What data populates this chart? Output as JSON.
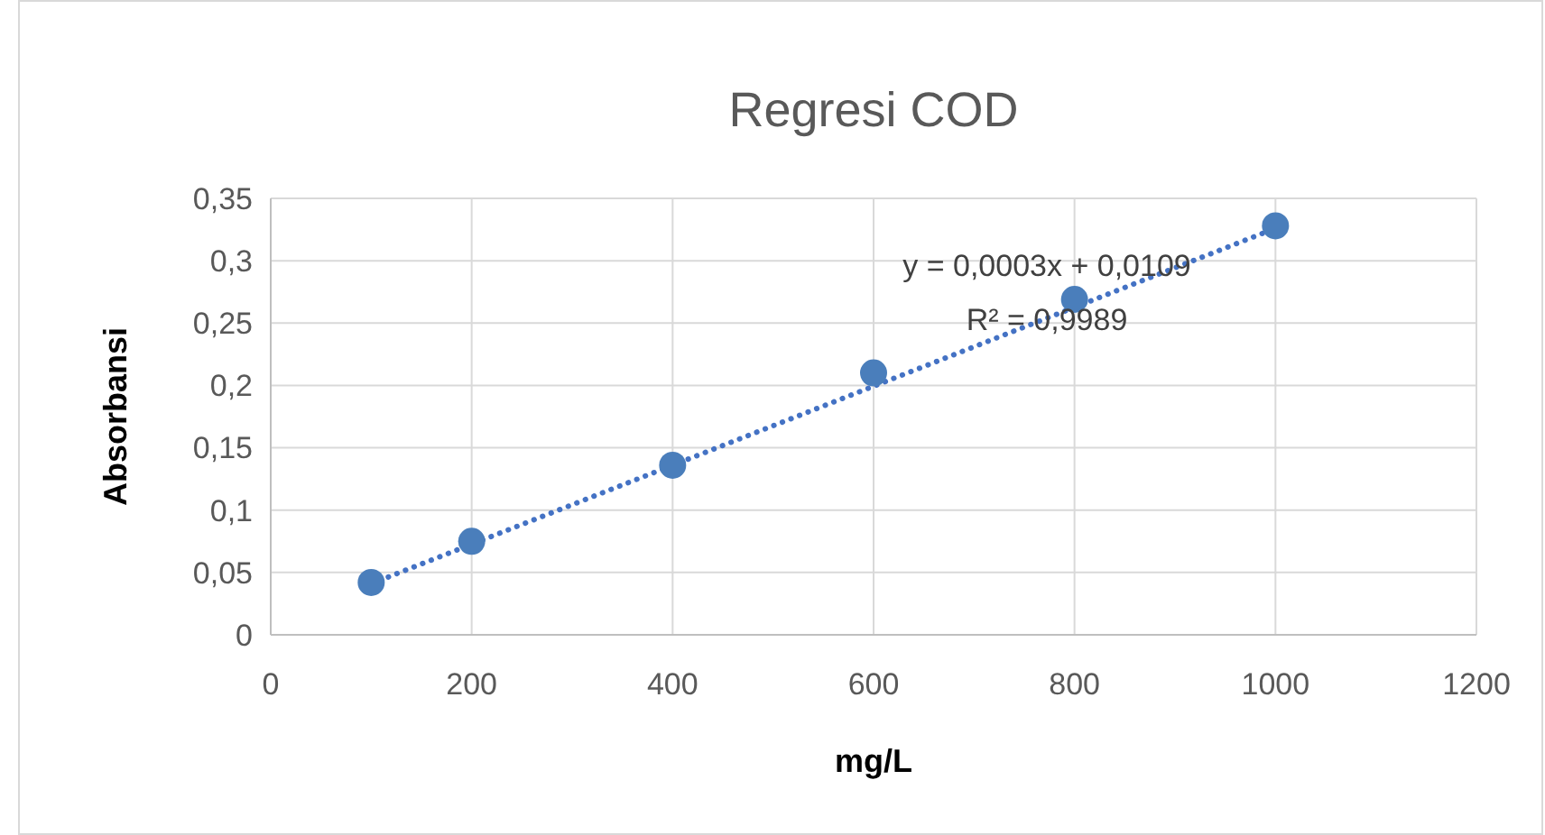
{
  "chart_data": {
    "type": "scatter",
    "title": "Regresi COD",
    "xlabel": "mg/L",
    "ylabel": "Absorbansi",
    "xlim": [
      0,
      1200
    ],
    "xticks": [
      0,
      200,
      400,
      600,
      800,
      1000,
      1200
    ],
    "ylim": [
      0,
      0.35
    ],
    "yticks": [
      {
        "value": 0,
        "label": "0"
      },
      {
        "value": 0.05,
        "label": "0,05"
      },
      {
        "value": 0.1,
        "label": "0,1"
      },
      {
        "value": 0.15,
        "label": "0,15"
      },
      {
        "value": 0.2,
        "label": "0,2"
      },
      {
        "value": 0.25,
        "label": "0,25"
      },
      {
        "value": 0.3,
        "label": "0,3"
      },
      {
        "value": 0.35,
        "label": "0,35"
      }
    ],
    "grid": true,
    "series": [
      {
        "color": "#4a7ebb",
        "marker": "circle",
        "x": [
          100,
          200,
          400,
          600,
          800,
          1000
        ],
        "values": [
          0.042,
          0.075,
          0.136,
          0.21,
          0.269,
          0.328
        ]
      },
      {
        "type": "line",
        "color": "#4472c4",
        "marker": "none",
        "line_style": "dotted",
        "x": [
          100,
          1000
        ],
        "values": [
          0.041,
          0.326
        ]
      }
    ],
    "annotations": [
      "y = 0,0003x + 0,0109",
      "R² = 0,9989"
    ]
  }
}
